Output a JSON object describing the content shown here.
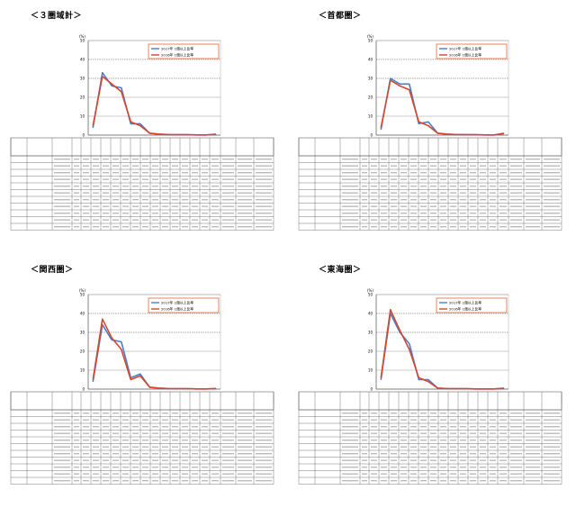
{
  "colors": {
    "blue": "#4a7fc9",
    "red": "#d9452f",
    "legend_border": "#e06a3d"
  },
  "charts": [
    {
      "title": "＜３圏域計＞",
      "y_unit": "(%)",
      "legend": [
        "2017年 1億以上比率",
        "2016年 1億以上比率"
      ],
      "chart_data": {
        "type": "line",
        "ylim": [
          0,
          50
        ],
        "yticks": [
          0,
          10,
          20,
          30,
          40,
          50
        ],
        "categories": [
          "1",
          "2",
          "3",
          "4",
          "5",
          "6",
          "7",
          "8",
          "9",
          "10",
          "11",
          "12",
          "13",
          "14"
        ],
        "series": [
          {
            "name": "2017年 1億以上比率",
            "values": [
              4,
              33,
              26,
              25,
              6,
              6,
              1,
              0.5,
              0.3,
              0.2,
              0.2,
              0.1,
              0.1,
              0.5
            ]
          },
          {
            "name": "2016年 1億以上比率",
            "values": [
              5,
              31,
              27,
              23,
              7,
              5,
              1,
              0.5,
              0.3,
              0.2,
              0.2,
              0.1,
              0.1,
              0.4
            ]
          }
        ]
      }
    },
    {
      "title": "＜首都圏＞",
      "y_unit": "(%)",
      "legend": [
        "2017年 1億以上比率",
        "2016年 1億以上比率"
      ],
      "chart_data": {
        "type": "line",
        "ylim": [
          0,
          50
        ],
        "yticks": [
          0,
          10,
          20,
          30,
          40,
          50
        ],
        "categories": [
          "1",
          "2",
          "3",
          "4",
          "5",
          "6",
          "7",
          "8",
          "9",
          "10",
          "11",
          "12",
          "13",
          "14"
        ],
        "series": [
          {
            "name": "2017年 1億以上比率",
            "values": [
              3,
              30,
              27,
              27,
              6,
              7,
              1,
              0.5,
              0.3,
              0.2,
              0.2,
              0.1,
              0.1,
              1
            ]
          },
          {
            "name": "2016年 1億以上比率",
            "values": [
              4,
              29,
              26,
              24,
              7,
              5,
              1,
              0.5,
              0.3,
              0.2,
              0.2,
              0.1,
              0.1,
              0.8
            ]
          }
        ]
      }
    },
    {
      "title": "＜関西圏＞",
      "y_unit": "(%)",
      "legend": [
        "2017年 1億以上比率",
        "2016年 1億以上比率"
      ],
      "chart_data": {
        "type": "line",
        "ylim": [
          0,
          50
        ],
        "yticks": [
          0,
          10,
          20,
          30,
          40,
          50
        ],
        "categories": [
          "1",
          "2",
          "3",
          "4",
          "5",
          "6",
          "7",
          "8",
          "9",
          "10",
          "11",
          "12",
          "13",
          "14"
        ],
        "series": [
          {
            "name": "2017年 1億以上比率",
            "values": [
              4,
              34,
              26,
              25,
              6,
              8,
              1,
              0.5,
              0.3,
              0.2,
              0.2,
              0.1,
              0.1,
              0.3
            ]
          },
          {
            "name": "2016年 1億以上比率",
            "values": [
              5,
              37,
              27,
              21,
              5,
              7,
              1,
              0.5,
              0.3,
              0.2,
              0.2,
              0.1,
              0.1,
              0.3
            ]
          }
        ]
      }
    },
    {
      "title": "＜東海圏＞",
      "y_unit": "(%)",
      "legend": [
        "2017年 1億以上比率",
        "2016年 1億以上比率"
      ],
      "chart_data": {
        "type": "line",
        "ylim": [
          0,
          50
        ],
        "yticks": [
          0,
          10,
          20,
          30,
          40,
          50
        ],
        "categories": [
          "1",
          "2",
          "3",
          "4",
          "5",
          "6",
          "7",
          "8",
          "9",
          "10",
          "11",
          "12",
          "13",
          "14"
        ],
        "series": [
          {
            "name": "2017年 1億以上比率",
            "values": [
              5,
              40,
              30,
              24,
              5,
              5,
              0.5,
              0.3,
              0.2,
              0.2,
              0.1,
              0.1,
              0.1,
              0.5
            ]
          },
          {
            "name": "2016年 1億以上比率",
            "values": [
              6,
              42,
              31,
              21,
              6,
              4,
              0.5,
              0.3,
              0.2,
              0.2,
              0.1,
              0.1,
              0.1,
              0.4
            ]
          }
        ]
      }
    }
  ]
}
